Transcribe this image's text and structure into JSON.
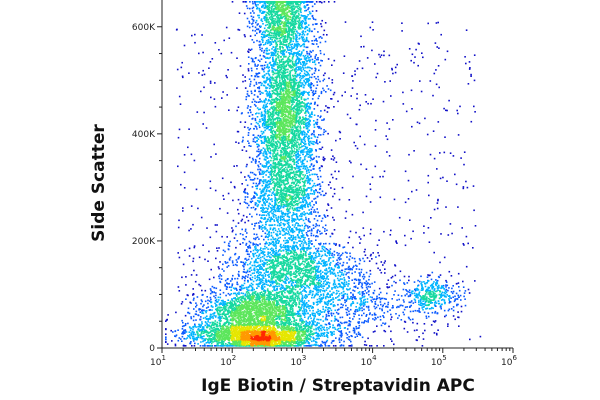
{
  "chart_data": {
    "type": "scatter",
    "subtype": "flow-cytometry-density-dot-plot",
    "xlabel": "IgE Biotin / Streptavidin APC",
    "ylabel": "Side Scatter",
    "x_scale": "log",
    "x_range": [
      10,
      1000000
    ],
    "x_ticks": [
      {
        "value": 10,
        "base": "10",
        "exp": "1"
      },
      {
        "value": 100,
        "base": "10",
        "exp": "2"
      },
      {
        "value": 1000,
        "base": "10",
        "exp": "3"
      },
      {
        "value": 10000,
        "base": "10",
        "exp": "4"
      },
      {
        "value": 100000,
        "base": "10",
        "exp": "5"
      },
      {
        "value": 1000000,
        "base": "10",
        "exp": "6"
      }
    ],
    "y_scale": "linear",
    "y_range": [
      0,
      650000
    ],
    "y_ticks": [
      {
        "value": 0,
        "label": "0"
      },
      {
        "value": 200000,
        "label": "200K"
      },
      {
        "value": 400000,
        "label": "400K"
      },
      {
        "value": 600000,
        "label": "600K"
      }
    ],
    "density_colormap": [
      "#1010c8",
      "#0a5aff",
      "#00b4ff",
      "#16d9a0",
      "#5ce65c",
      "#e6e600",
      "#ff9900",
      "#ff2a00",
      "#c80000"
    ],
    "grid": false,
    "legend": "none",
    "populations": [
      {
        "x_center": 1000,
        "y_center": 400000,
        "density": "high"
      },
      {
        "x_center": 700,
        "y_center": 140000,
        "density": "medium"
      },
      {
        "x_center": 200,
        "y_center": 45000,
        "density": "high"
      },
      {
        "x_center": 200,
        "y_center": 10000,
        "density": "peak"
      },
      {
        "x_center": 80000,
        "y_center": 90000,
        "density": "low"
      }
    ]
  }
}
